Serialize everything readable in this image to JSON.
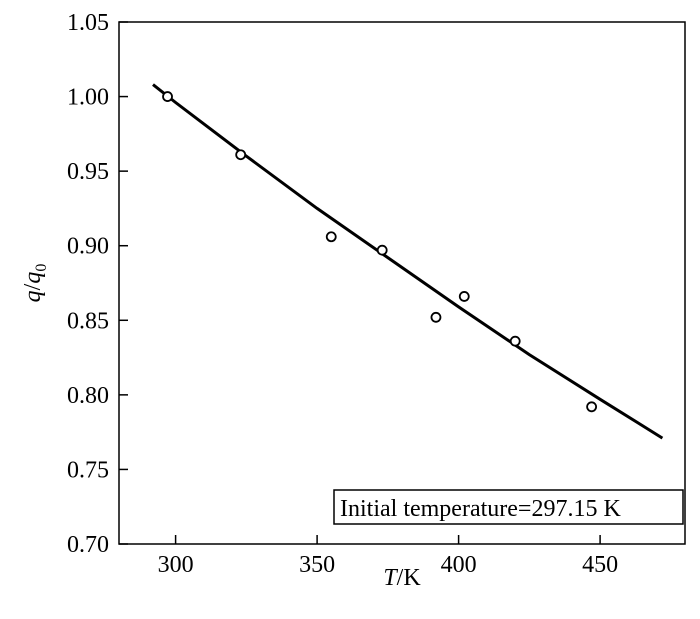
{
  "chart_data": {
    "type": "scatter",
    "xlabel": {
      "italic": "T",
      "rest": "/K"
    },
    "ylabel": {
      "italic1": "q",
      "slash": "/",
      "italic2": "q",
      "sub": "0"
    },
    "xlim": [
      280,
      480
    ],
    "ylim": [
      0.7,
      1.05
    ],
    "xticks": [
      300,
      350,
      400,
      450
    ],
    "yticks": [
      0.7,
      0.75,
      0.8,
      0.85,
      0.9,
      0.95,
      1.0,
      1.05
    ],
    "grid": false,
    "annotation": "Initial temperature=297.15 K",
    "series": [
      {
        "kind": "points",
        "marker": "open-circle",
        "x": [
          297.15,
          323,
          355,
          373,
          392,
          402,
          420,
          447
        ],
        "y": [
          1.0,
          0.961,
          0.906,
          0.897,
          0.852,
          0.866,
          0.836,
          0.792
        ]
      },
      {
        "kind": "fit-line",
        "x": [
          292,
          300,
          325,
          350,
          375,
          400,
          425,
          450,
          472
        ],
        "y": [
          1.008,
          0.996,
          0.96,
          0.925,
          0.892,
          0.859,
          0.827,
          0.797,
          0.771
        ]
      }
    ]
  }
}
